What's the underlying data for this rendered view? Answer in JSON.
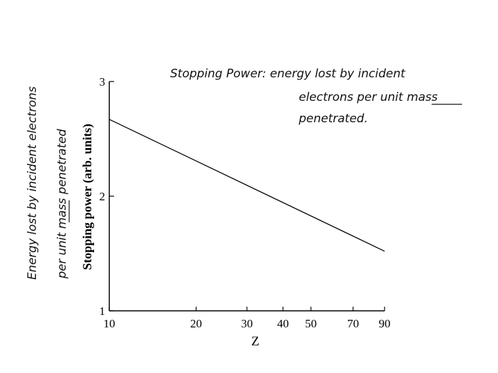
{
  "chart_data": {
    "type": "line",
    "title": "",
    "xlabel": "Z",
    "ylabel": "Stopping power (arb. units)",
    "x_scale": "log",
    "x_ticks": [
      "10",
      "20",
      "30",
      "40",
      "50",
      "70",
      "90"
    ],
    "x_tick_values": [
      10,
      20,
      30,
      40,
      50,
      70,
      90
    ],
    "y_ticks": [
      "1",
      "2",
      "3"
    ],
    "y_tick_values": [
      1,
      2,
      3
    ],
    "xlim": [
      10,
      90
    ],
    "ylim": [
      1,
      3
    ],
    "grid": false,
    "series": [
      {
        "x": [
          10,
          90
        ],
        "y": [
          2.67,
          1.52
        ]
      }
    ],
    "color": "#000000"
  },
  "annotations": {
    "note_line1": "Stopping Power:   energy lost by incident",
    "note_line2": "electrons per unit mass",
    "note_line3": "penetrated.",
    "side_label_line1": "Energy lost by incident electrons",
    "side_label_line2": "per unit mass penetrated"
  }
}
